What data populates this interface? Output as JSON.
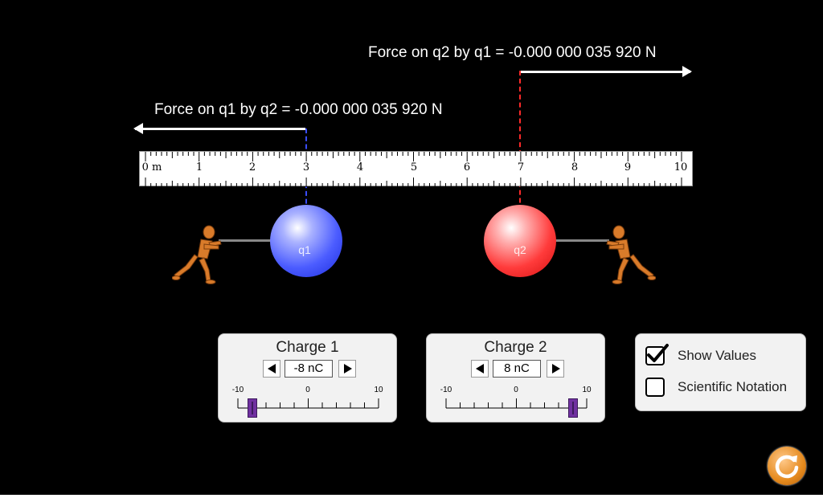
{
  "forces": {
    "q2_by_q1": "Force on q2 by q1 = -0.000 000 035 920 N",
    "q1_by_q2": "Force on q1 by q2 = -0.000 000 035 920 N"
  },
  "ruler": {
    "unit_label": "0 m",
    "tick_labels": [
      "1",
      "2",
      "3",
      "4",
      "5",
      "6",
      "7",
      "8",
      "9",
      "10"
    ]
  },
  "charges": {
    "q1": {
      "label": "q1",
      "position_m": 3,
      "color": "#3a4dff"
    },
    "q2": {
      "label": "q2",
      "position_m": 7,
      "color": "#ff2a2a"
    }
  },
  "charge1_panel": {
    "title": "Charge 1",
    "value": "-8 nC",
    "slider_min_label": "-10",
    "slider_mid_label": "0",
    "slider_max_label": "10",
    "slider_value": -8
  },
  "charge2_panel": {
    "title": "Charge 2",
    "value": "8 nC",
    "slider_min_label": "-10",
    "slider_mid_label": "0",
    "slider_max_label": "10",
    "slider_value": 8
  },
  "options": {
    "show_values": {
      "label": "Show Values",
      "checked": true
    },
    "scientific_notation": {
      "label": "Scientific Notation",
      "checked": false
    }
  },
  "icons": {
    "reset": "reset-icon",
    "figure": "pulling-figure-icon"
  }
}
